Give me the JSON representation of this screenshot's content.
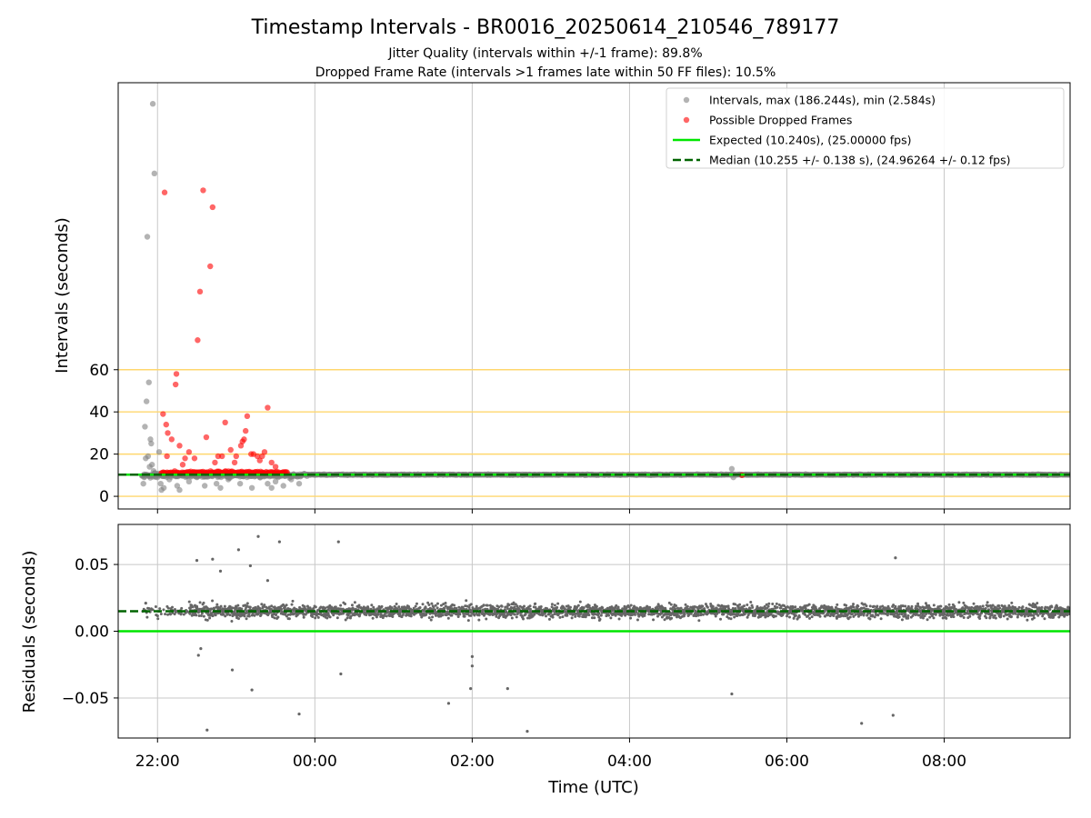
{
  "title": "Timestamp Intervals - BR0016_20250614_210546_789177",
  "subtitle_lines": [
    "Jitter Quality (intervals within +/-1 frame): 89.8%",
    "Dropped Frame Rate (intervals >1 frames late within 50 FF files): 10.5%"
  ],
  "colors": {
    "intervals": "#808080",
    "dropped": "#ff0000",
    "expected": "#00e600",
    "median": "#006400",
    "reference_lines": "#ffd76e",
    "grid": "#c8c8c8",
    "residuals": "#666666"
  },
  "chart_data": [
    {
      "type": "scatter",
      "name": "intervals_panel",
      "ylabel": "Intervals (seconds)",
      "xlabel": "",
      "x_unit": "hours since 00:00 UTC (negative = previous evening)",
      "xlim": [
        -2.5,
        9.6
      ],
      "ylim": [
        -6,
        196
      ],
      "y_ticks": [
        0,
        20,
        40,
        60
      ],
      "x_ticks": [
        -2,
        0,
        2,
        4,
        6,
        8
      ],
      "x_tick_labels": [
        "22:00",
        "00:00",
        "02:00",
        "04:00",
        "06:00",
        "08:00"
      ],
      "grid_vertical": true,
      "reference_lines": [
        0,
        20,
        40,
        60
      ],
      "legend_position": "top-right",
      "legend": [
        "Intervals, max (186.244s), min (2.584s)",
        "Possible Dropped Frames",
        "Expected (10.240s), (25.00000 fps)",
        "Median (10.255 +/- 0.138 s), (24.96264 +/- 0.12 fps)"
      ],
      "expected_value": 10.24,
      "median_value": 10.255,
      "steady_period": [
        -0.1,
        9.6
      ],
      "series": [
        {
          "name": "Intervals, max (186.244s), min (2.584s)",
          "points": [
            [
              -2.16,
              33
            ],
            [
              -2.14,
              45
            ],
            [
              -2.13,
              123
            ],
            [
              -2.11,
              54
            ],
            [
              -2.09,
              27
            ],
            [
              -2.08,
              25
            ],
            [
              -2.06,
              186
            ],
            [
              -2.04,
              153
            ],
            [
              -1.98,
              21
            ],
            [
              -2.15,
              18
            ],
            [
              -2.12,
              19
            ],
            [
              -2.1,
              14
            ],
            [
              -2.05,
              12
            ],
            [
              -2.0,
              9
            ],
            [
              -1.96,
              6
            ],
            [
              -2.18,
              6
            ],
            [
              -2.17,
              9
            ],
            [
              -2.07,
              15
            ],
            [
              -2.03,
              11
            ],
            [
              -1.92,
              4
            ],
            [
              -1.85,
              8
            ],
            [
              -1.75,
              5
            ],
            [
              -1.6,
              7
            ],
            [
              -1.5,
              9
            ],
            [
              -1.4,
              5
            ],
            [
              -1.25,
              6
            ],
            [
              -1.1,
              8
            ],
            [
              -0.95,
              6
            ],
            [
              -0.8,
              4
            ],
            [
              -0.7,
              9
            ],
            [
              -0.6,
              6
            ],
            [
              -0.5,
              7
            ],
            [
              -0.4,
              5
            ],
            [
              -0.3,
              8
            ],
            [
              -0.2,
              6
            ],
            [
              -1.2,
              4
            ],
            [
              -0.55,
              4
            ],
            [
              -1.72,
              3
            ],
            [
              -1.95,
              3
            ],
            [
              5.3,
              13
            ],
            [
              5.32,
              9
            ]
          ]
        },
        {
          "name": "Possible Dropped Frames",
          "points": [
            [
              -1.93,
              39
            ],
            [
              -1.91,
              144
            ],
            [
              -1.89,
              34
            ],
            [
              -1.87,
              30
            ],
            [
              -1.82,
              27
            ],
            [
              -1.77,
              53
            ],
            [
              -1.76,
              58
            ],
            [
              -1.72,
              24
            ],
            [
              -1.65,
              18
            ],
            [
              -1.6,
              21
            ],
            [
              -1.53,
              18
            ],
            [
              -1.49,
              74
            ],
            [
              -1.46,
              97
            ],
            [
              -1.42,
              145
            ],
            [
              -1.38,
              28
            ],
            [
              -1.33,
              109
            ],
            [
              -1.3,
              137
            ],
            [
              -1.27,
              16
            ],
            [
              -1.23,
              19
            ],
            [
              -1.14,
              35
            ],
            [
              -1.07,
              22
            ],
            [
              -1.02,
              16
            ],
            [
              -0.94,
              24
            ],
            [
              -0.92,
              26
            ],
            [
              -0.9,
              27
            ],
            [
              -0.88,
              31
            ],
            [
              -0.86,
              38
            ],
            [
              -0.81,
              20
            ],
            [
              -0.73,
              19
            ],
            [
              -0.7,
              17
            ],
            [
              -0.67,
              19
            ],
            [
              -0.64,
              21
            ],
            [
              -0.6,
              42
            ],
            [
              -0.55,
              16
            ],
            [
              -0.5,
              14
            ],
            [
              -1.88,
              19
            ],
            [
              -1.68,
              15
            ],
            [
              -1.18,
              19
            ],
            [
              -1.0,
              19
            ],
            [
              -0.78,
              20
            ],
            [
              5.43,
              10
            ]
          ]
        },
        {
          "name": "Expected (10.240s), (25.00000 fps)",
          "y": 10.24
        },
        {
          "name": "Median (10.255 +/- 0.138 s), (24.96264 +/- 0.12 fps)",
          "y": 10.255
        }
      ]
    },
    {
      "type": "scatter",
      "name": "residuals_panel",
      "xlabel": "Time (UTC)",
      "ylabel": "Residuals (seconds)",
      "xlim": [
        -2.5,
        9.6
      ],
      "ylim": [
        -0.08,
        0.08
      ],
      "y_ticks": [
        -0.05,
        0.0,
        0.05
      ],
      "y_tick_labels": [
        "−0.05",
        "0.00",
        "0.05"
      ],
      "x_ticks": [
        -2,
        0,
        2,
        4,
        6,
        8
      ],
      "x_tick_labels": [
        "22:00",
        "00:00",
        "02:00",
        "04:00",
        "06:00",
        "08:00"
      ],
      "grid": true,
      "expected_value": 0.0,
      "median_value": 0.015,
      "typical_band": [
        -0.008,
        0.038
      ],
      "center": 0.015,
      "data_range": [
        -2.2,
        9.6
      ],
      "outliers": [
        [
          -2.15,
          0.021
        ],
        [
          -1.5,
          0.053
        ],
        [
          -1.48,
          -0.018
        ],
        [
          -1.45,
          -0.013
        ],
        [
          -1.37,
          -0.074
        ],
        [
          -1.3,
          0.054
        ],
        [
          -1.2,
          0.045
        ],
        [
          -1.05,
          -0.029
        ],
        [
          -0.97,
          0.061
        ],
        [
          -0.82,
          0.049
        ],
        [
          -0.8,
          -0.044
        ],
        [
          -0.72,
          0.071
        ],
        [
          -0.6,
          0.038
        ],
        [
          -0.45,
          0.067
        ],
        [
          -0.2,
          -0.062
        ],
        [
          0.3,
          0.067
        ],
        [
          0.33,
          -0.032
        ],
        [
          1.7,
          -0.054
        ],
        [
          1.98,
          -0.043
        ],
        [
          2.0,
          -0.026
        ],
        [
          2.0,
          -0.019
        ],
        [
          2.45,
          -0.043
        ],
        [
          2.7,
          -0.075
        ],
        [
          5.3,
          -0.047
        ],
        [
          6.95,
          -0.069
        ],
        [
          7.35,
          -0.063
        ],
        [
          7.38,
          0.055
        ]
      ]
    }
  ]
}
